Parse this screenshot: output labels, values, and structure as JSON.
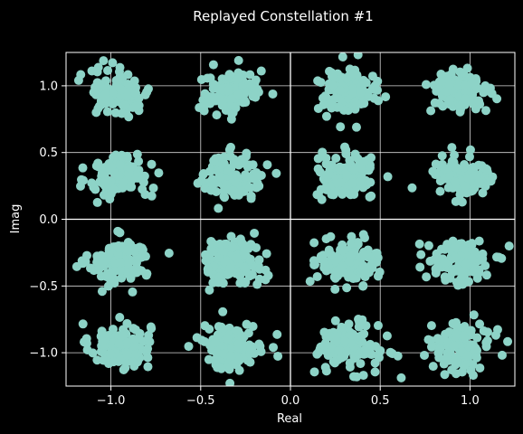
{
  "chart_data": {
    "type": "scatter",
    "title": "Replayed Constellation #1",
    "xlabel": "Real",
    "ylabel": "Imag",
    "xlim": [
      -1.25,
      1.25
    ],
    "ylim": [
      -1.25,
      1.25
    ],
    "xticks": [
      -1.0,
      -0.5,
      0.0,
      0.5,
      1.0
    ],
    "xtick_labels": [
      "−1.0",
      "−0.5",
      "0.0",
      "0.5",
      "1.0"
    ],
    "yticks": [
      -1.0,
      -0.5,
      0.0,
      0.5,
      1.0
    ],
    "yticklabels": [
      "−1.0",
      "−0.5",
      "0.0",
      "0.5",
      "1.0"
    ],
    "grid": true,
    "zero_lines": true,
    "legend": "none",
    "background_color": "#000000",
    "marker_color": "#8dd3c7",
    "constellation": "16-QAM",
    "cluster_centers_real": [
      -0.95,
      -0.32,
      0.32,
      0.95
    ],
    "cluster_centers_imag": [
      -0.95,
      -0.32,
      0.32,
      0.95
    ],
    "noise_std": 0.085,
    "points_per_cluster": 120
  }
}
